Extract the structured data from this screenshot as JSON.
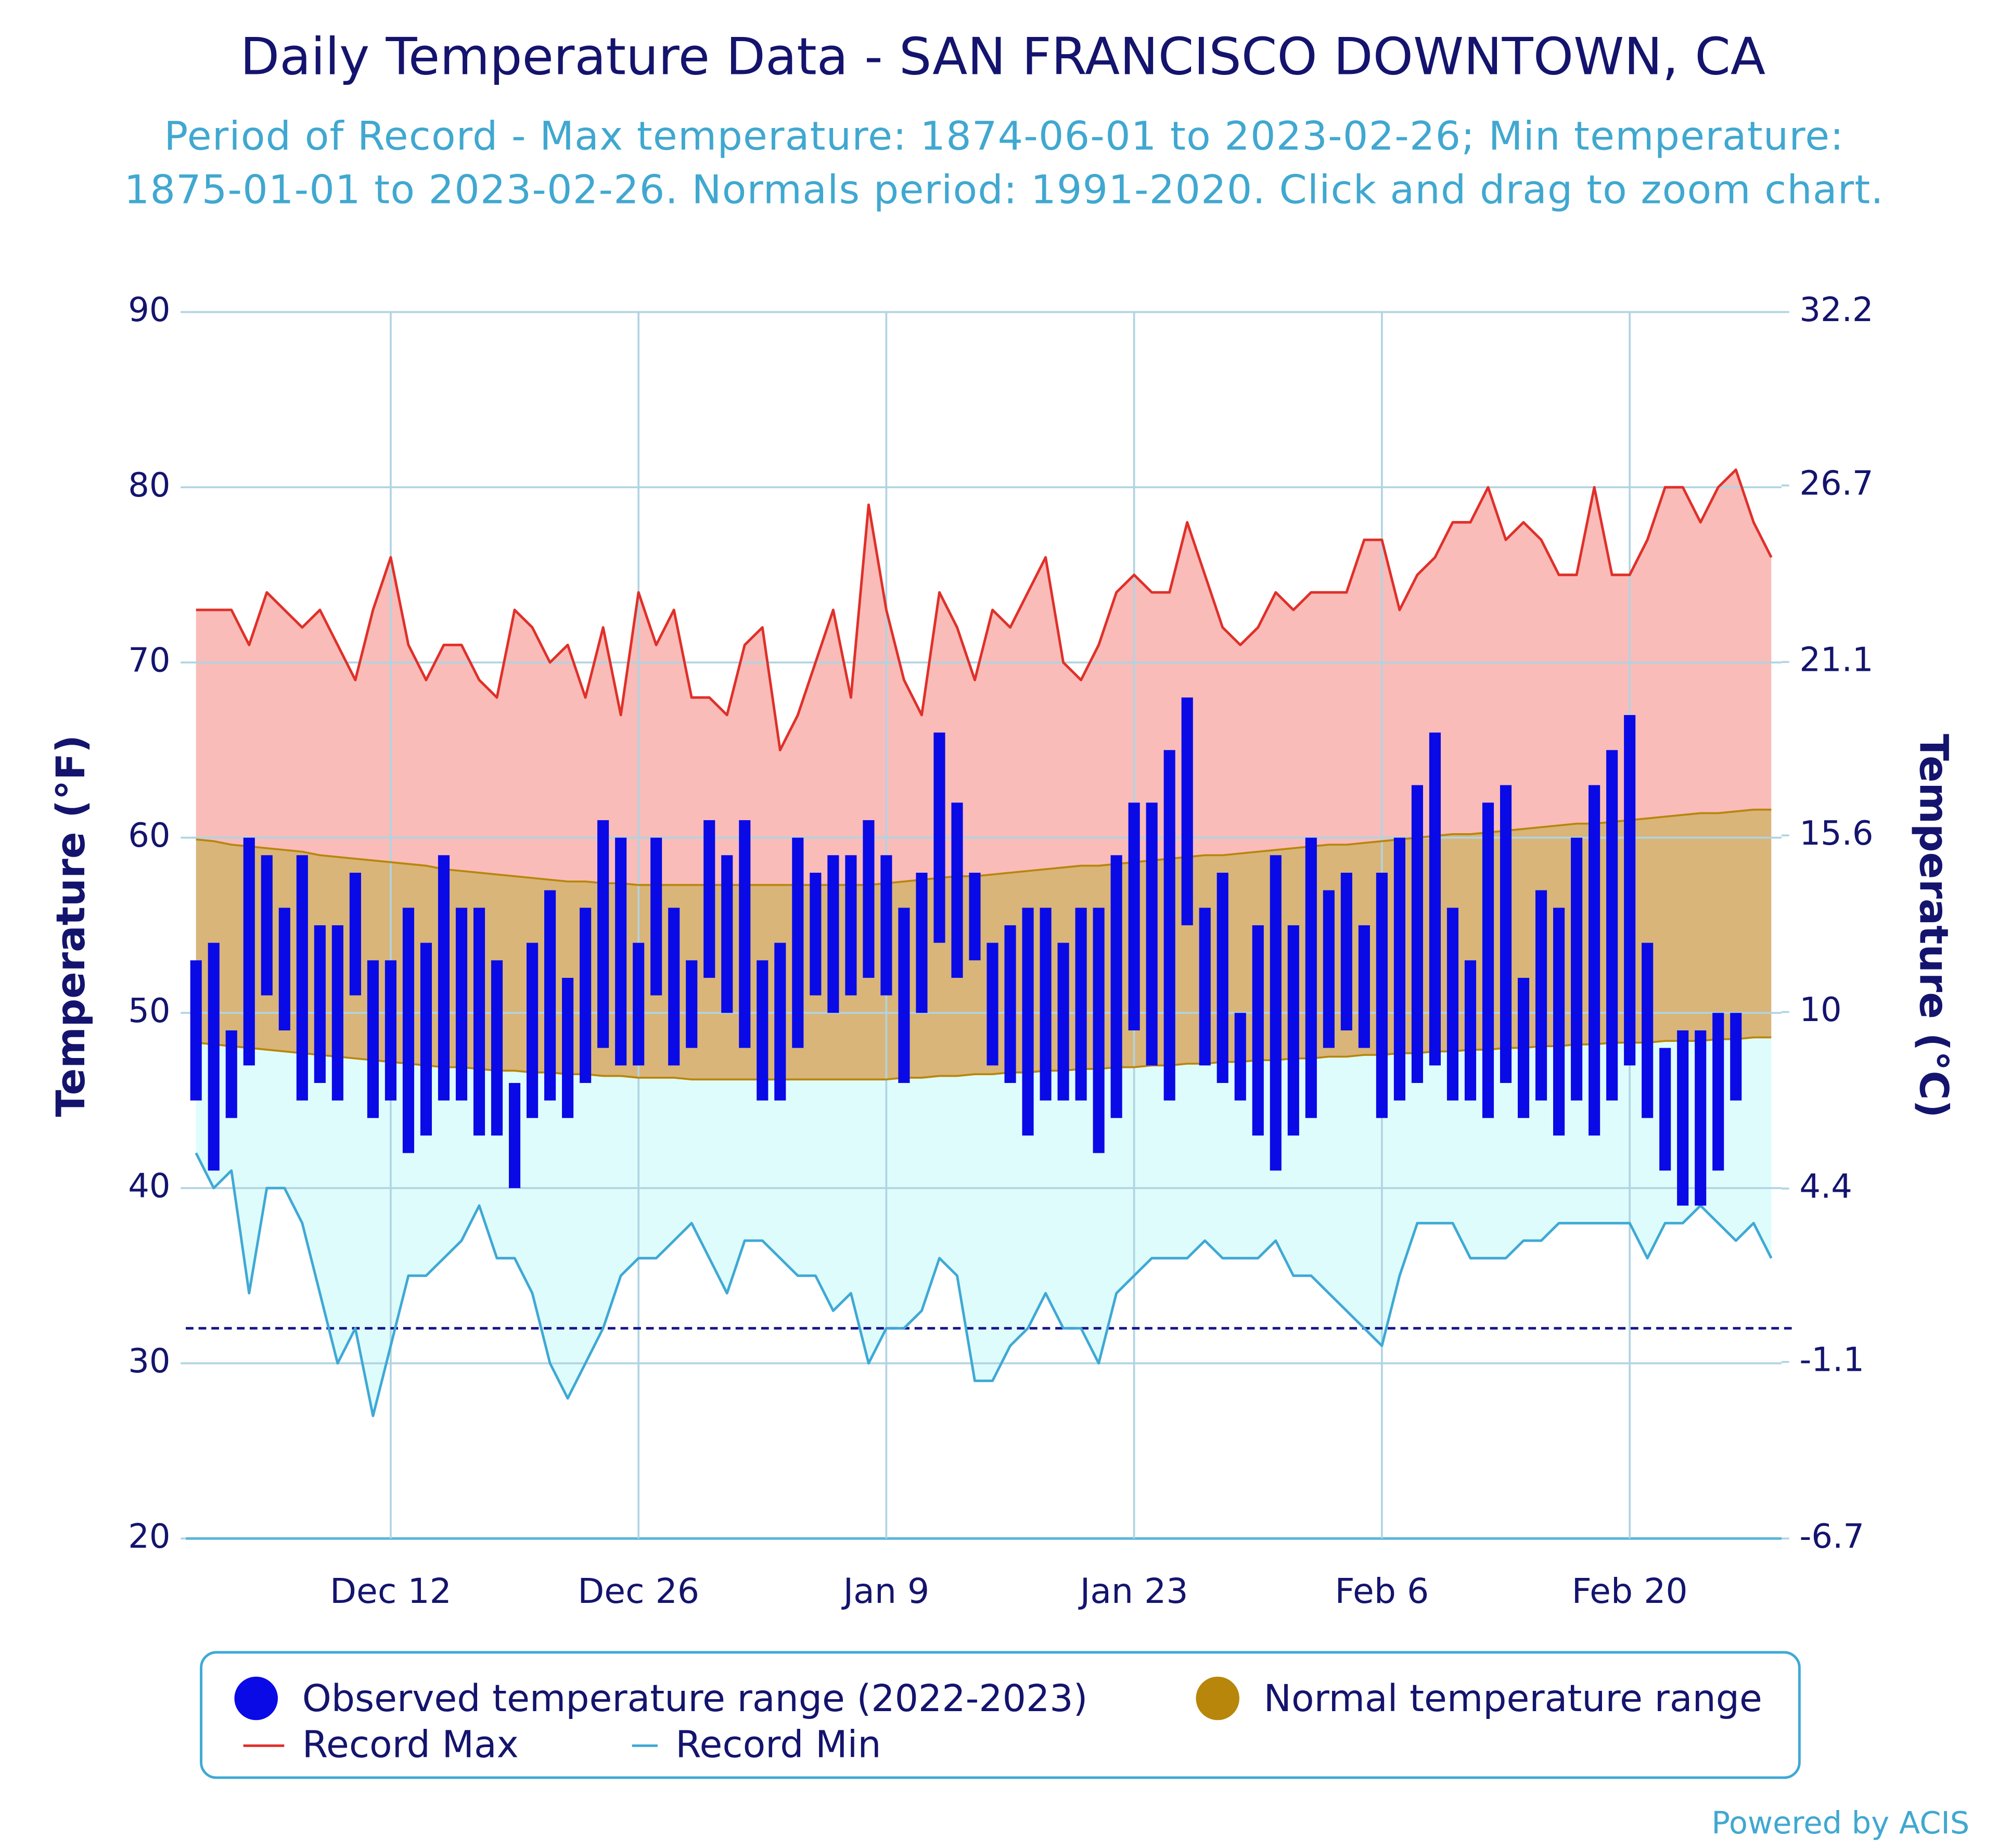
{
  "chart_data": {
    "type": "range",
    "title": "Daily Temperature Data - SAN FRANCISCO DOWNTOWN, CA",
    "subtitle": "Period of Record - Max temperature: 1874-06-01 to 2023-02-26; Min temperature: 1875-01-01 to 2023-02-26. Normals period: 1991-2020. Click and drag to zoom chart.",
    "ylabel": "Temperature (°F)",
    "y2label": "Temperature (°C)",
    "credit": "Powered by ACIS",
    "categories": [
      null,
      null,
      null,
      null,
      null,
      null,
      null,
      null,
      null,
      null,
      null,
      "Dec 12",
      null,
      null,
      null,
      null,
      null,
      null,
      null,
      null,
      null,
      null,
      null,
      null,
      null,
      "Dec 26",
      null,
      null,
      null,
      null,
      null,
      null,
      null,
      null,
      null,
      null,
      null,
      null,
      null,
      "Jan 9",
      null,
      null,
      null,
      null,
      null,
      null,
      null,
      null,
      null,
      null,
      null,
      null,
      null,
      "Jan 23",
      null,
      null,
      null,
      null,
      null,
      null,
      null,
      null,
      null,
      null,
      null,
      null,
      null,
      "Feb 6",
      null,
      null,
      null,
      null,
      null,
      null,
      null,
      null,
      null,
      null,
      null,
      null,
      null,
      "Feb 20",
      null,
      null,
      null,
      null,
      null,
      null,
      null,
      null
    ],
    "ylim": [
      20,
      90
    ],
    "yticks": [
      20,
      30,
      40,
      50,
      60,
      70,
      80,
      90
    ],
    "y2lim": [
      -6.7,
      32.2
    ],
    "y2ticks": [
      -6.7,
      -1.1,
      4.4,
      10,
      15.6,
      21.1,
      26.7,
      32.2
    ],
    "grid": true,
    "freezing_line": 32,
    "series": [
      {
        "name": "Observed temperature range (2022-2023)",
        "color": "#0a0ae6",
        "low": [
          45,
          41,
          44,
          47,
          51,
          49,
          45,
          46,
          45,
          51,
          44,
          45,
          42,
          43,
          45,
          45,
          43,
          43,
          40,
          44,
          45,
          44,
          46,
          48,
          47,
          47,
          51,
          47,
          48,
          52,
          50,
          48,
          45,
          45,
          48,
          51,
          50,
          51,
          52,
          51,
          46,
          50,
          54,
          52,
          53,
          47,
          46,
          43,
          45,
          45,
          45,
          42,
          44,
          49,
          47,
          45,
          55,
          47,
          46,
          45,
          43,
          41,
          43,
          44,
          48,
          49,
          48,
          44,
          45,
          46,
          47,
          45,
          45,
          44,
          46,
          44,
          45,
          43,
          45,
          43,
          45,
          47,
          44,
          41,
          39,
          39,
          41,
          45,
          null,
          null
        ],
        "high": [
          53,
          54,
          49,
          60,
          59,
          56,
          59,
          55,
          55,
          58,
          53,
          53,
          56,
          54,
          59,
          56,
          56,
          53,
          46,
          54,
          57,
          52,
          56,
          61,
          60,
          54,
          60,
          56,
          53,
          61,
          59,
          61,
          53,
          54,
          60,
          58,
          59,
          59,
          61,
          59,
          56,
          58,
          66,
          62,
          58,
          54,
          55,
          56,
          56,
          54,
          56,
          56,
          59,
          62,
          62,
          65,
          68,
          56,
          58,
          50,
          55,
          59,
          55,
          60,
          57,
          58,
          55,
          58,
          60,
          63,
          66,
          56,
          53,
          62,
          63,
          52,
          57,
          56,
          60,
          63,
          65,
          67,
          54,
          48,
          49,
          49,
          50,
          50,
          null,
          null
        ]
      },
      {
        "name": "Normal temperature range",
        "color": "#b8860b",
        "fill": "#d9b57a",
        "low": [
          48.3,
          48.2,
          48.1,
          48.0,
          47.9,
          47.8,
          47.7,
          47.6,
          47.5,
          47.4,
          47.3,
          47.2,
          47.1,
          47.0,
          46.9,
          46.9,
          46.8,
          46.7,
          46.7,
          46.6,
          46.6,
          46.5,
          46.5,
          46.4,
          46.4,
          46.3,
          46.3,
          46.3,
          46.2,
          46.2,
          46.2,
          46.2,
          46.2,
          46.2,
          46.2,
          46.2,
          46.2,
          46.2,
          46.2,
          46.2,
          46.3,
          46.3,
          46.4,
          46.4,
          46.5,
          46.5,
          46.6,
          46.6,
          46.7,
          46.7,
          46.8,
          46.8,
          46.9,
          46.9,
          47.0,
          47.0,
          47.1,
          47.1,
          47.2,
          47.2,
          47.3,
          47.3,
          47.4,
          47.4,
          47.5,
          47.5,
          47.6,
          47.6,
          47.7,
          47.7,
          47.8,
          47.8,
          47.9,
          47.9,
          48.0,
          48.0,
          48.1,
          48.1,
          48.2,
          48.2,
          48.3,
          48.3,
          48.3,
          48.4,
          48.4,
          48.4,
          48.5,
          48.5,
          48.6,
          48.6
        ],
        "high": [
          59.9,
          59.8,
          59.6,
          59.5,
          59.4,
          59.3,
          59.2,
          59.0,
          58.9,
          58.8,
          58.7,
          58.6,
          58.5,
          58.4,
          58.2,
          58.1,
          58.0,
          57.9,
          57.8,
          57.7,
          57.6,
          57.5,
          57.5,
          57.4,
          57.4,
          57.3,
          57.3,
          57.3,
          57.3,
          57.3,
          57.3,
          57.3,
          57.3,
          57.3,
          57.3,
          57.3,
          57.3,
          57.3,
          57.3,
          57.4,
          57.5,
          57.6,
          57.7,
          57.8,
          57.8,
          57.9,
          58.0,
          58.1,
          58.2,
          58.3,
          58.4,
          58.4,
          58.5,
          58.6,
          58.7,
          58.8,
          58.9,
          59.0,
          59.0,
          59.1,
          59.2,
          59.3,
          59.4,
          59.5,
          59.6,
          59.6,
          59.7,
          59.8,
          59.9,
          60.0,
          60.1,
          60.2,
          60.2,
          60.3,
          60.4,
          60.5,
          60.6,
          60.7,
          60.8,
          60.8,
          60.9,
          61.0,
          61.1,
          61.2,
          61.3,
          61.4,
          61.4,
          61.5,
          61.6,
          61.6
        ]
      },
      {
        "name": "Record Max",
        "color": "#e0302a",
        "fill": "#f9bcb8",
        "values": [
          73,
          73,
          73,
          71,
          74,
          73,
          72,
          73,
          71,
          69,
          73,
          76,
          71,
          69,
          71,
          71,
          69,
          68,
          73,
          72,
          70,
          71,
          68,
          72,
          67,
          74,
          71,
          73,
          68,
          68,
          67,
          71,
          72,
          65,
          67,
          70,
          73,
          68,
          79,
          73,
          69,
          67,
          74,
          72,
          69,
          73,
          72,
          74,
          76,
          70,
          69,
          71,
          74,
          75,
          74,
          74,
          78,
          75,
          72,
          71,
          72,
          74,
          73,
          74,
          74,
          74,
          77,
          77,
          73,
          75,
          76,
          78,
          78,
          80,
          77,
          78,
          77,
          75,
          75,
          80,
          75,
          75,
          77,
          80,
          80,
          78,
          80,
          81,
          78,
          76
        ]
      },
      {
        "name": "Record Min",
        "color": "#3fa9d5",
        "fill": "#dffcfc",
        "values": [
          42,
          40,
          41,
          34,
          40,
          40,
          38,
          34,
          30,
          32,
          27,
          31,
          35,
          35,
          36,
          37,
          39,
          36,
          36,
          34,
          30,
          28,
          30,
          32,
          35,
          36,
          36,
          37,
          38,
          36,
          34,
          37,
          37,
          36,
          35,
          35,
          33,
          34,
          30,
          32,
          32,
          33,
          36,
          35,
          29,
          29,
          31,
          32,
          34,
          32,
          32,
          30,
          34,
          35,
          36,
          36,
          36,
          37,
          36,
          36,
          36,
          37,
          35,
          35,
          34,
          33,
          32,
          31,
          35,
          38,
          38,
          38,
          36,
          36,
          36,
          37,
          37,
          38,
          38,
          38,
          38,
          38,
          36,
          38,
          38,
          39,
          38,
          37,
          38,
          36
        ]
      }
    ]
  }
}
